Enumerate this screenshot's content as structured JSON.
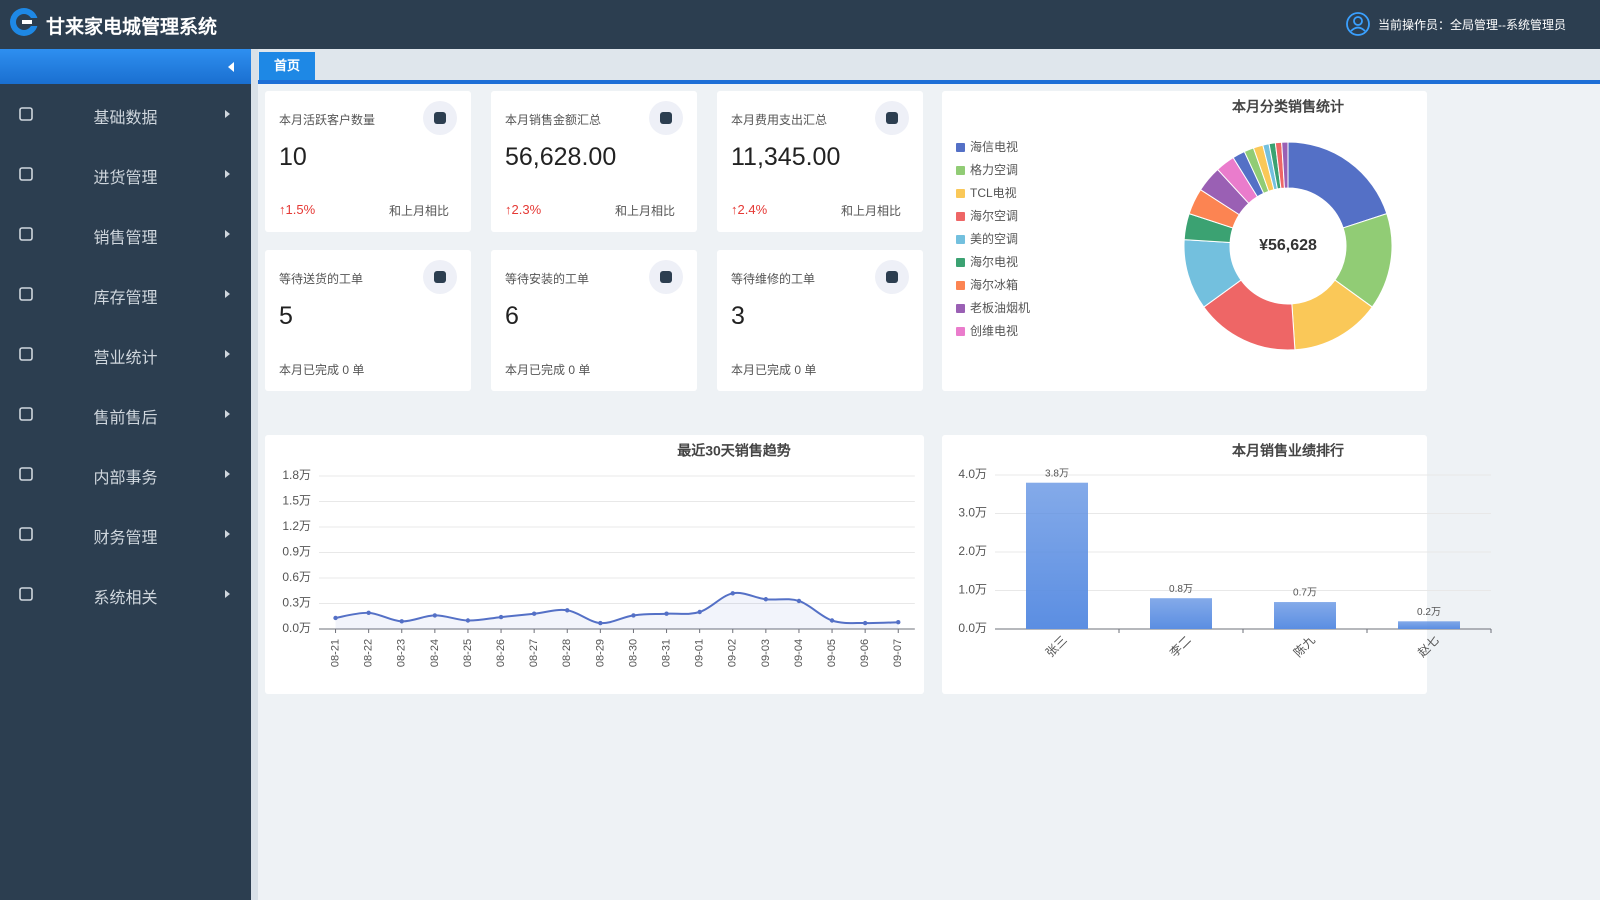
{
  "header": {
    "title": "甘来家电城管理系统",
    "operator": "当前操作员：全局管理--系统管理员"
  },
  "sidebar": {
    "menu": [
      "基础数据",
      "进货管理",
      "销售管理",
      "库存管理",
      "营业统计",
      "售前售后",
      "内部事务",
      "财务管理",
      "系统相关"
    ]
  },
  "tabs": [
    "首页"
  ],
  "stat_cards": [
    {
      "title": "本月活跃客户数量",
      "value": "10",
      "change": "↑1.5%",
      "compare": "和上月相比"
    },
    {
      "title": "本月销售金额汇总",
      "value": "56,628.00",
      "change": "↑2.3%",
      "compare": "和上月相比"
    },
    {
      "title": "本月费用支出汇总",
      "value": "11,345.00",
      "change": "↑2.4%",
      "compare": "和上月相比"
    }
  ],
  "order_cards": [
    {
      "title": "等待送货的工单",
      "value": "5",
      "footer": "本月已完成 0 单"
    },
    {
      "title": "等待安装的工单",
      "value": "6",
      "footer": "本月已完成 0 单"
    },
    {
      "title": "等待维修的工单",
      "value": "3",
      "footer": "本月已完成 0 单"
    }
  ],
  "chart_data": [
    {
      "type": "pie",
      "title": "本月分类销售统计",
      "center_label": "¥56,628",
      "categories": [
        "海信电视",
        "格力空调",
        "TCL电视",
        "海尔空调",
        "美的空调",
        "海尔电视",
        "海尔冰箱",
        "老板油烟机",
        "创维电视",
        null,
        null,
        null,
        null,
        null,
        null,
        null
      ],
      "values": [
        11300,
        8500,
        7900,
        9100,
        6200,
        2300,
        2300,
        2300,
        1700,
        1100,
        850,
        850,
        550,
        550,
        550,
        550
      ],
      "colors": [
        "#5470c6",
        "#91cc75",
        "#fac858",
        "#ee6666",
        "#73c0de",
        "#3ba272",
        "#fc8452",
        "#9a60b4",
        "#ea7ccc",
        "#5470c6",
        "#91cc75",
        "#fac858",
        "#73c0de",
        "#3ba272",
        "#ee6666",
        "#9a60b4"
      ]
    },
    {
      "type": "line",
      "title": "最近30天销售趋势",
      "categories": [
        "08-21",
        "08-22",
        "08-23",
        "08-24",
        "08-25",
        "08-26",
        "08-27",
        "08-28",
        "08-29",
        "08-30",
        "08-31",
        "09-01",
        "09-02",
        "09-03",
        "09-04",
        "09-05",
        "09-06",
        "09-07"
      ],
      "values": [
        1300,
        1900,
        900,
        1600,
        1000,
        1400,
        1800,
        2200,
        700,
        1600,
        1800,
        2000,
        4200,
        3500,
        3300,
        1000,
        700,
        800
      ],
      "color": "#5470c6",
      "area": true,
      "grid": true,
      "ylim": [
        0,
        18000
      ],
      "yticks": [
        {
          "value": 0,
          "label": "0.0万"
        },
        {
          "value": 3000,
          "label": "0.3万"
        },
        {
          "value": 6000,
          "label": "0.6万"
        },
        {
          "value": 9000,
          "label": "0.9万"
        },
        {
          "value": 12000,
          "label": "1.2万"
        },
        {
          "value": 15000,
          "label": "1.5万"
        },
        {
          "value": 18000,
          "label": "1.8万"
        }
      ]
    },
    {
      "type": "bar",
      "title": "本月销售业绩排行",
      "categories": [
        "张三",
        "李二",
        "陈九",
        "赵七"
      ],
      "values": [
        38000,
        8000,
        7000,
        2000
      ],
      "value_labels": [
        "3.8万",
        "0.8万",
        "0.7万",
        "0.2万"
      ],
      "color": "#5b8ee2",
      "grid": true,
      "ylim": [
        0,
        40000
      ],
      "yticks": [
        {
          "value": 0,
          "label": "0.0万"
        },
        {
          "value": 10000,
          "label": "1.0万"
        },
        {
          "value": 20000,
          "label": "2.0万"
        },
        {
          "value": 30000,
          "label": "3.0万"
        },
        {
          "value": 40000,
          "label": "4.0万"
        }
      ]
    }
  ]
}
